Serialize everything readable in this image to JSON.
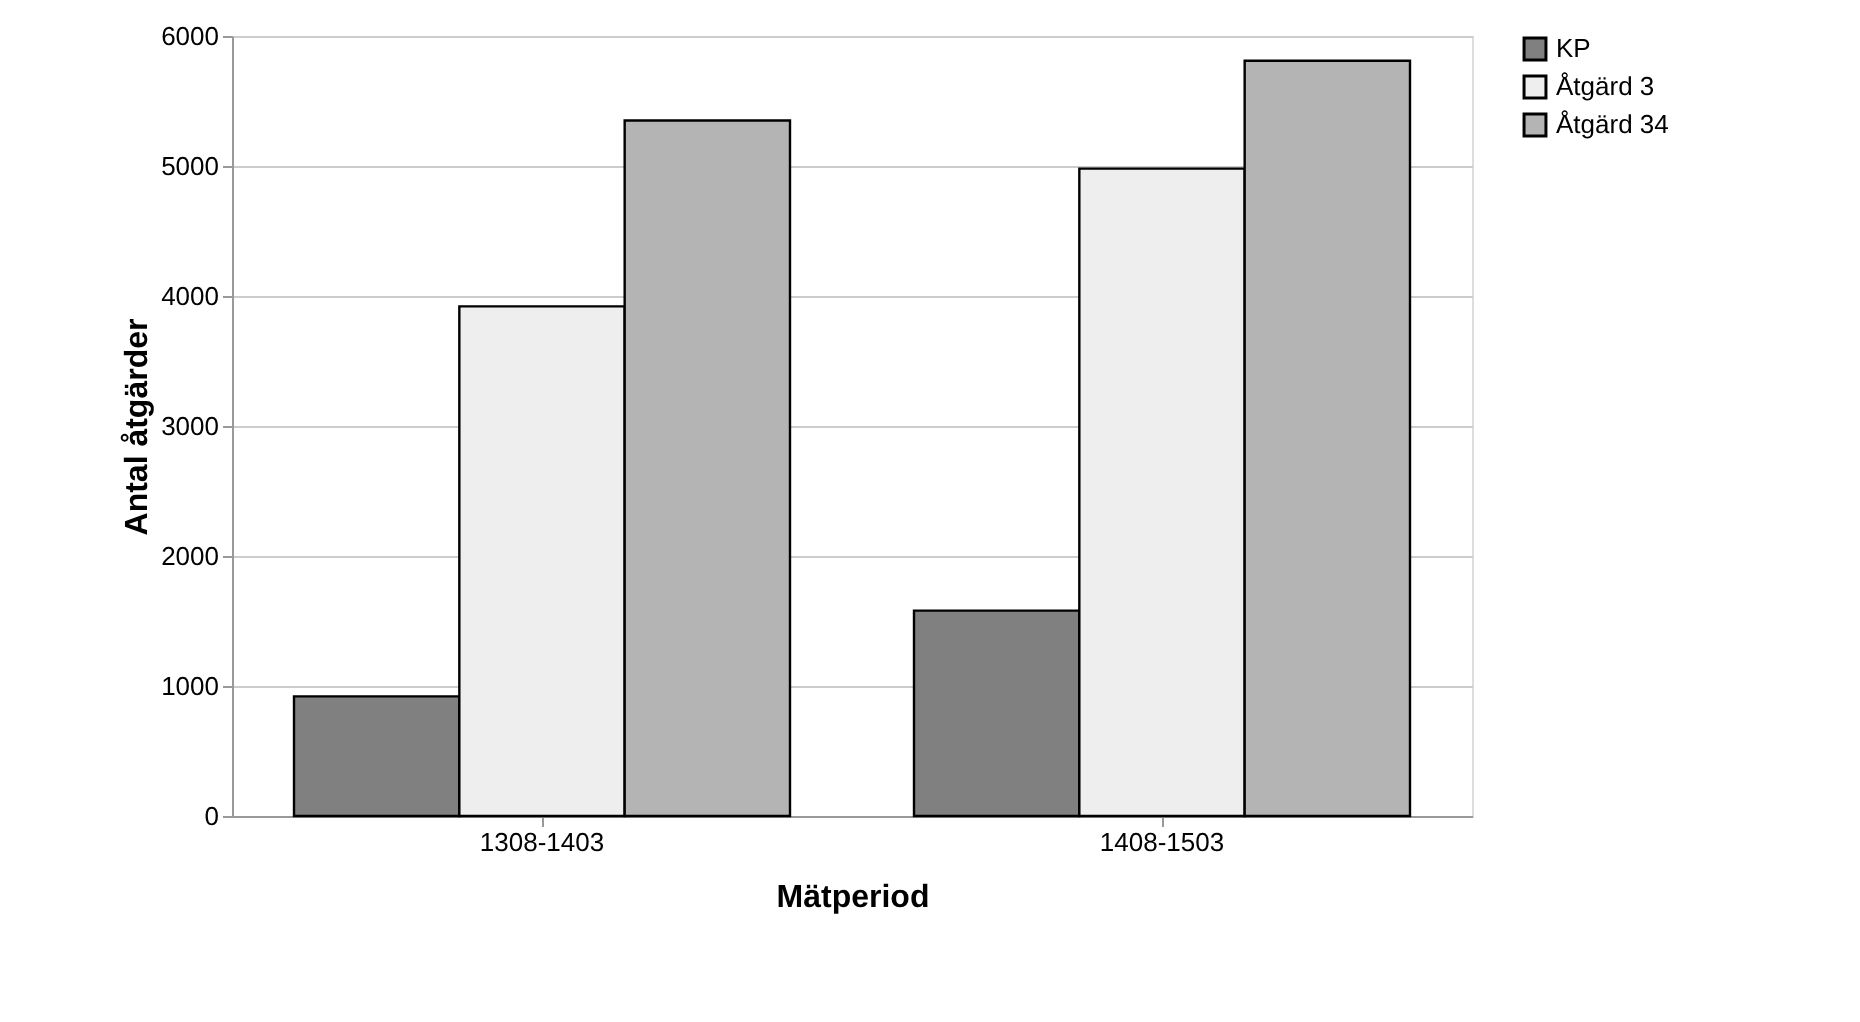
{
  "chart_data": {
    "type": "bar",
    "xlabel": "Mätperiod",
    "ylabel": "Antal åtgärder",
    "categories": [
      "1308-1403",
      "1408-1503"
    ],
    "series": [
      {
        "name": "KP",
        "color": "#808080",
        "values": [
          920,
          1580
        ]
      },
      {
        "name": "Åtgärd 3",
        "color": "#eeeeee",
        "values": [
          3920,
          4980
        ]
      },
      {
        "name": "Åtgärd 34",
        "color": "#b4b4b4",
        "values": [
          5350,
          5810
        ]
      }
    ],
    "ylim": [
      0,
      6000
    ],
    "yticks": [
      0,
      1000,
      2000,
      3000,
      4000,
      5000,
      6000
    ],
    "grid": "y",
    "legend": "right"
  }
}
